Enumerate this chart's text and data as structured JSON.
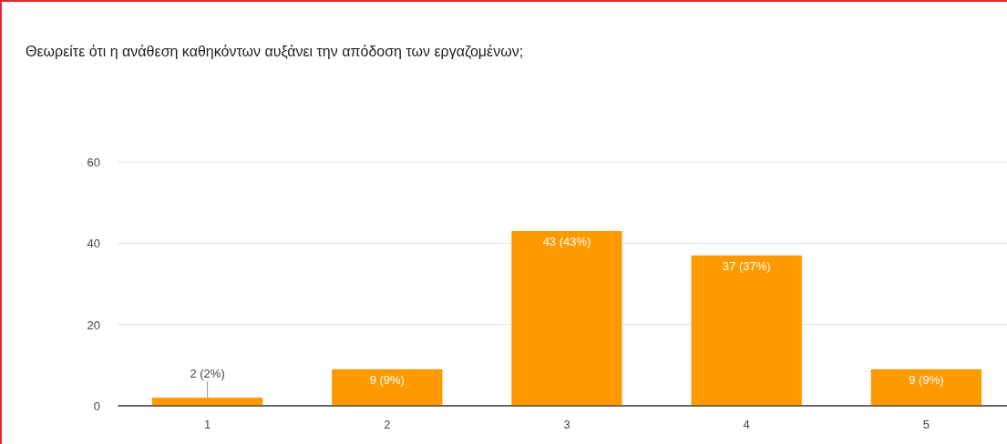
{
  "chart_data": {
    "type": "bar",
    "title": "Θεωρείτε ότι η ανάθεση καθηκόντων αυξάνει την απόδοση των εργαζομένων;",
    "categories": [
      "1",
      "2",
      "3",
      "4",
      "5"
    ],
    "values": [
      2,
      9,
      43,
      37,
      9
    ],
    "value_labels": [
      "2 (2%)",
      "9 (9%)",
      "43 (43%)",
      "37 (37%)",
      "9 (9%)"
    ],
    "color": "#ff9900",
    "ylim": [
      0,
      60
    ],
    "yticks": [
      0,
      20,
      40,
      60
    ],
    "grid": "y"
  }
}
